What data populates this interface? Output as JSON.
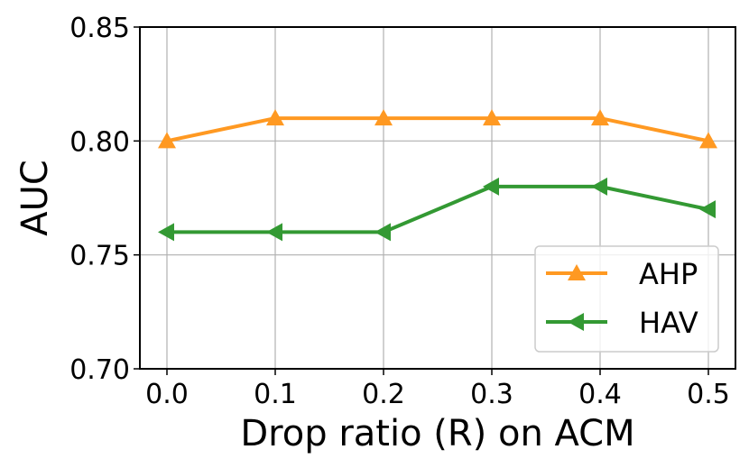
{
  "chart_data": {
    "type": "line",
    "xlabel": "Drop ratio (R) on ACM",
    "ylabel": "AUC",
    "x": [
      0.0,
      0.1,
      0.2,
      0.3,
      0.4,
      0.5
    ],
    "xticks": [
      "0.0",
      "0.1",
      "0.2",
      "0.3",
      "0.4",
      "0.5"
    ],
    "yticks": [
      "0.70",
      "0.75",
      "0.80",
      "0.85"
    ],
    "ylim": [
      0.7,
      0.85
    ],
    "xlim": [
      -0.025,
      0.525
    ],
    "grid": true,
    "legend_position": "lower-right",
    "series": [
      {
        "name": "AHP",
        "values": [
          0.8,
          0.81,
          0.81,
          0.81,
          0.81,
          0.8
        ],
        "color": "#ff9922",
        "marker": "triangle-up"
      },
      {
        "name": "HAV",
        "values": [
          0.76,
          0.76,
          0.76,
          0.78,
          0.78,
          0.77
        ],
        "color": "#339933",
        "marker": "triangle-left"
      }
    ]
  }
}
